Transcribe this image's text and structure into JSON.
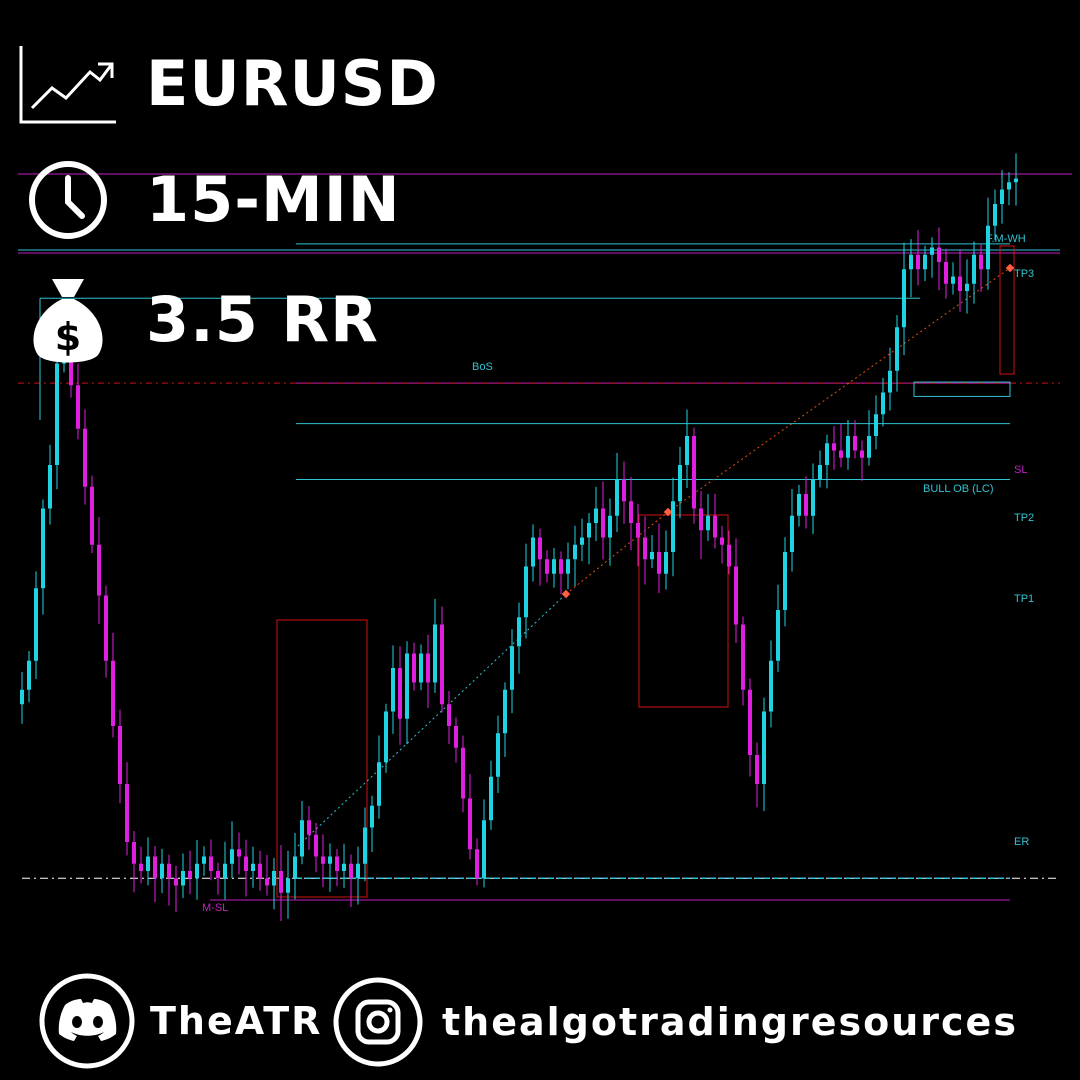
{
  "header": {
    "pair": "EURUSD",
    "timeframe": "15-MIN",
    "risk_reward": "3.5 RR",
    "icons": [
      "trend-chart-icon",
      "clock-icon",
      "money-bag-icon"
    ]
  },
  "footer": {
    "discord_name": "TheATR",
    "instagram_handle": "thealgotradingresources",
    "icons": [
      "discord-icon",
      "instagram-icon"
    ]
  },
  "colors": {
    "background": "#000000",
    "bull": "#1fd3e3",
    "bear": "#e020e0",
    "level_cyan": "#2fc3d3",
    "level_magenta": "#c020c0",
    "box_red": "#d01010",
    "dotted_orange": "#e05010"
  },
  "chart_data": {
    "type": "candlestick",
    "symbol": "EURUSD",
    "timeframe": "15-MIN",
    "axis_range_approx": [
      0,
      1
    ],
    "levels": [
      {
        "label": "F.M-WH",
        "value": 0.92
      },
      {
        "label": "TP3",
        "value": 0.905
      },
      {
        "label": "BoS",
        "value": 0.83
      },
      {
        "label": "SL",
        "value": 0.713
      },
      {
        "label": "BULL OB (LC)",
        "value": 0.707
      },
      {
        "label": "TP2",
        "value": 0.657
      },
      {
        "label": "TP1",
        "value": 0.58
      },
      {
        "label": "ER",
        "value": 0.03
      },
      {
        "label": "M-SL",
        "value": 0.0
      }
    ],
    "closes": [
      0.29,
      0.33,
      0.43,
      0.54,
      0.6,
      0.74,
      0.79,
      0.71,
      0.65,
      0.57,
      0.49,
      0.42,
      0.33,
      0.24,
      0.16,
      0.08,
      0.05,
      0.04,
      0.06,
      0.03,
      0.05,
      0.03,
      0.02,
      0.04,
      0.03,
      0.05,
      0.06,
      0.04,
      0.03,
      0.05,
      0.07,
      0.06,
      0.04,
      0.05,
      0.03,
      0.02,
      0.04,
      0.01,
      0.03,
      0.06,
      0.11,
      0.09,
      0.06,
      0.05,
      0.06,
      0.04,
      0.05,
      0.03,
      0.05,
      0.1,
      0.13,
      0.19,
      0.26,
      0.32,
      0.25,
      0.34,
      0.3,
      0.34,
      0.3,
      0.38,
      0.27,
      0.24,
      0.21,
      0.14,
      0.07,
      0.03,
      0.11,
      0.17,
      0.23,
      0.29,
      0.35,
      0.39,
      0.46,
      0.5,
      0.47,
      0.45,
      0.47,
      0.45,
      0.47,
      0.49,
      0.5,
      0.52,
      0.54,
      0.5,
      0.53,
      0.58,
      0.55,
      0.52,
      0.5,
      0.47,
      0.48,
      0.45,
      0.48,
      0.55,
      0.6,
      0.64,
      0.54,
      0.51,
      0.53,
      0.5,
      0.49,
      0.46,
      0.38,
      0.29,
      0.2,
      0.16,
      0.26,
      0.33,
      0.4,
      0.48,
      0.53,
      0.56,
      0.53,
      0.58,
      0.6,
      0.63,
      0.62,
      0.61,
      0.64,
      0.62,
      0.61,
      0.64,
      0.67,
      0.7,
      0.73,
      0.79,
      0.87,
      0.89,
      0.87,
      0.89,
      0.9,
      0.88,
      0.85,
      0.86,
      0.84,
      0.85,
      0.89,
      0.87,
      0.93,
      0.96,
      0.98,
      0.99,
      0.995
    ]
  }
}
